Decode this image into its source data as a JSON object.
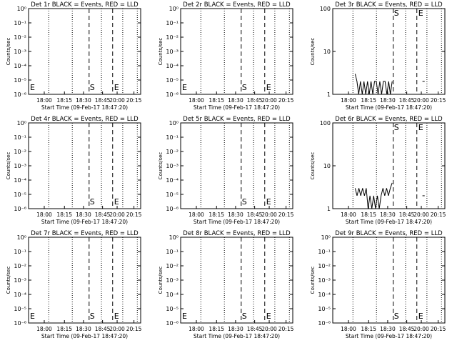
{
  "chart_data": [
    {
      "type": "line",
      "title": "Det 1r BLACK = Events, RED = LLD",
      "ylabel": "Counts/sec",
      "xlabel": "Start Time (09-Feb-17 18:47:20)",
      "yscale": "log",
      "ylim": [
        1e-06,
        1.0
      ],
      "yticks": [
        "10⁻⁶",
        "10⁻⁵",
        "10⁻⁴",
        "10⁻³",
        "10⁻²",
        "10⁻¹",
        "10⁰"
      ],
      "xticks": [
        "18:00",
        "18:15",
        "18:30",
        "18:45",
        "20:00",
        "20:15"
      ],
      "markers": {
        "E_left": "E",
        "S": "S",
        "E_right": "E"
      },
      "series": []
    },
    {
      "type": "line",
      "title": "Det 2r BLACK = Events, RED = LLD",
      "ylabel": "Counts/sec",
      "xlabel": "Start Time (09-Feb-17 18:47:20)",
      "yscale": "log",
      "ylim": [
        1e-06,
        1.0
      ],
      "yticks": [
        "10⁻⁶",
        "10⁻⁵",
        "10⁻⁴",
        "10⁻³",
        "10⁻²",
        "10⁻¹",
        "10⁰"
      ],
      "xticks": [
        "18:00",
        "18:15",
        "18:30",
        "18:45",
        "20:00",
        "20:15"
      ],
      "markers": {
        "E_left": "E",
        "S": "S",
        "E_right": "E"
      },
      "series": []
    },
    {
      "type": "line",
      "title": "Det 3r BLACK = Events, RED = LLD",
      "ylabel": "Counts/sec",
      "xlabel": "Start Time (09-Feb-17 18:47:20)",
      "yscale": "log",
      "ylim": [
        1,
        100
      ],
      "yticks": [
        "1",
        "10",
        "100"
      ],
      "xticks": [
        "18:00",
        "18:15",
        "18:30",
        "18:45",
        "20:00",
        "20:15"
      ],
      "markers": {
        "S": "S",
        "E_right": "E"
      },
      "series": [
        {
          "values": [
            3,
            2,
            1,
            2,
            1,
            2,
            1,
            2,
            1,
            2,
            1,
            2,
            2,
            1,
            2,
            1,
            2,
            2,
            1,
            2,
            1,
            2
          ]
        }
      ]
    },
    {
      "type": "line",
      "title": "Det 4r BLACK = Events, RED = LLD",
      "ylabel": "Counts/sec",
      "xlabel": "Start Time (09-Feb-17 18:47:20)",
      "yscale": "log",
      "ylim": [
        1e-06,
        1.0
      ],
      "yticks": [
        "10⁻⁶",
        "10⁻⁵",
        "10⁻⁴",
        "10⁻³",
        "10⁻²",
        "10⁻¹",
        "10⁰"
      ],
      "xticks": [
        "18:00",
        "18:15",
        "18:30",
        "18:45",
        "20:00",
        "20:15"
      ],
      "markers": {
        "S": "S",
        "E_right": "E"
      },
      "series": []
    },
    {
      "type": "line",
      "title": "Det 5r BLACK = Events, RED = LLD",
      "ylabel": "Counts/sec",
      "xlabel": "Start Time (09-Feb-17 18:47:20)",
      "yscale": "log",
      "ylim": [
        1e-06,
        1.0
      ],
      "yticks": [
        "10⁻⁶",
        "10⁻⁵",
        "10⁻⁴",
        "10⁻³",
        "10⁻²",
        "10⁻¹",
        "10⁰"
      ],
      "xticks": [
        "18:00",
        "18:15",
        "18:30",
        "18:45",
        "20:00",
        "20:15"
      ],
      "markers": {
        "S": "S",
        "E_right": "E"
      },
      "series": []
    },
    {
      "type": "line",
      "title": "Det 6r BLACK = Events, RED = LLD",
      "ylabel": "Counts/sec",
      "xlabel": "Start Time (09-Feb-17 18:47:20)",
      "yscale": "log",
      "ylim": [
        1,
        100
      ],
      "yticks": [
        "1",
        "10",
        "100"
      ],
      "xticks": [
        "18:00",
        "18:15",
        "18:30",
        "18:45",
        "20:00",
        "20:15"
      ],
      "markers": {
        "S": "S",
        "E_right": "E"
      },
      "series": [
        {
          "values": [
            3,
            2,
            3,
            2,
            3,
            2,
            3,
            1,
            2,
            1,
            2,
            1,
            2,
            1,
            2,
            3,
            2,
            3,
            2,
            3,
            4
          ]
        }
      ]
    },
    {
      "type": "line",
      "title": "Det 7r BLACK = Events, RED = LLD",
      "ylabel": "Counts/sec",
      "xlabel": "Start Time (09-Feb-17 18:47:20)",
      "yscale": "log",
      "ylim": [
        1e-06,
        1.0
      ],
      "yticks": [
        "10⁻⁶",
        "10⁻⁵",
        "10⁻⁴",
        "10⁻³",
        "10⁻²",
        "10⁻¹",
        "10⁰"
      ],
      "xticks": [
        "18:00",
        "18:15",
        "18:30",
        "18:45",
        "20:00",
        "20:15"
      ],
      "markers": {
        "E_left": "E",
        "S": "S",
        "E_right": "E"
      },
      "series": []
    },
    {
      "type": "line",
      "title": "Det 8r BLACK = Events, RED = LLD",
      "ylabel": "Counts/sec",
      "xlabel": "Start Time (09-Feb-17 18:47:20)",
      "yscale": "log",
      "ylim": [
        1e-06,
        1.0
      ],
      "yticks": [
        "10⁻⁶",
        "10⁻⁵",
        "10⁻⁴",
        "10⁻³",
        "10⁻²",
        "10⁻¹",
        "10⁰"
      ],
      "xticks": [
        "18:00",
        "18:15",
        "18:30",
        "18:45",
        "20:00",
        "20:15"
      ],
      "markers": {
        "E_left": "E",
        "S": "S",
        "E_right": "E"
      },
      "series": []
    },
    {
      "type": "line",
      "title": "Det 9r BLACK = Events, RED = LLD",
      "ylabel": "Counts/sec",
      "xlabel": "Start Time (09-Feb-17 18:47:20)",
      "yscale": "log",
      "ylim": [
        1e-06,
        1.0
      ],
      "yticks": [
        "10⁻⁶",
        "10⁻⁵",
        "10⁻⁴",
        "10⁻³",
        "10⁻²",
        "10⁻¹",
        "10⁰"
      ],
      "xticks": [
        "18:00",
        "18:15",
        "18:30",
        "18:45",
        "20:00",
        "20:15"
      ],
      "markers": {
        "S": "S",
        "E_right": "E"
      },
      "series": []
    }
  ]
}
